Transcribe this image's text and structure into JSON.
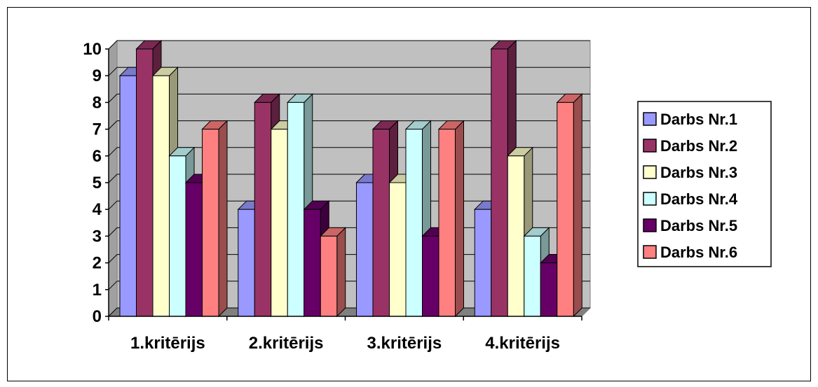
{
  "chart_data": {
    "type": "bar",
    "title": "",
    "xlabel": "",
    "ylabel": "",
    "categories": [
      "1.kritērijs",
      "2.kritērijs",
      "3.kritērijs",
      "4.kritērijs"
    ],
    "ylim": [
      0,
      10
    ],
    "yticks": [
      "0",
      "1",
      "2",
      "3",
      "4",
      "5",
      "6",
      "7",
      "8",
      "9",
      "10"
    ],
    "grid": true,
    "legend_position": "right",
    "style": "3d-clustered-column",
    "wall_color": "#c0c0c0",
    "series": [
      {
        "name": "Darbs Nr.1",
        "color": "#9999ff",
        "values": [
          9,
          4,
          5,
          4
        ]
      },
      {
        "name": "Darbs Nr.2",
        "color": "#993366",
        "values": [
          10,
          8,
          7,
          10
        ]
      },
      {
        "name": "Darbs Nr.3",
        "color": "#ffffcc",
        "values": [
          9,
          7,
          5,
          6
        ]
      },
      {
        "name": "Darbs Nr.4",
        "color": "#ccffff",
        "values": [
          6,
          8,
          7,
          3
        ]
      },
      {
        "name": "Darbs Nr.5",
        "color": "#660066",
        "values": [
          5,
          4,
          3,
          2
        ]
      },
      {
        "name": "Darbs Nr.6",
        "color": "#ff8080",
        "values": [
          7,
          3,
          7,
          8
        ]
      }
    ]
  }
}
